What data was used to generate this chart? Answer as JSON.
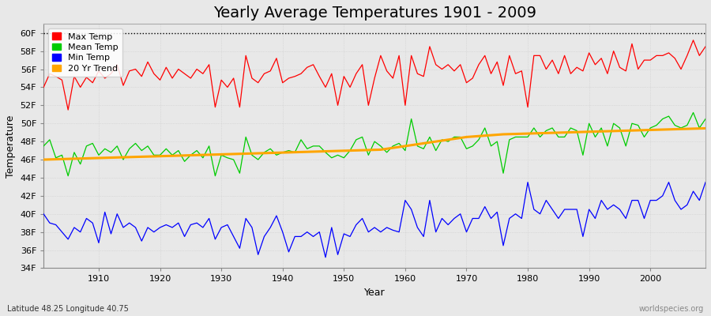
{
  "title": "Yearly Average Temperatures 1901 - 2009",
  "xlabel": "Year",
  "ylabel": "Temperature",
  "bottom_left_label": "Latitude 48.25 Longitude 40.75",
  "bottom_right_label": "worldspecies.org",
  "years": [
    1901,
    1902,
    1903,
    1904,
    1905,
    1906,
    1907,
    1908,
    1909,
    1910,
    1911,
    1912,
    1913,
    1914,
    1915,
    1916,
    1917,
    1918,
    1919,
    1920,
    1921,
    1922,
    1923,
    1924,
    1925,
    1926,
    1927,
    1928,
    1929,
    1930,
    1931,
    1932,
    1933,
    1934,
    1935,
    1936,
    1937,
    1938,
    1939,
    1940,
    1941,
    1942,
    1943,
    1944,
    1945,
    1946,
    1947,
    1948,
    1949,
    1950,
    1951,
    1952,
    1953,
    1954,
    1955,
    1956,
    1957,
    1958,
    1959,
    1960,
    1961,
    1962,
    1963,
    1964,
    1965,
    1966,
    1967,
    1968,
    1969,
    1970,
    1971,
    1972,
    1973,
    1974,
    1975,
    1976,
    1977,
    1978,
    1979,
    1980,
    1981,
    1982,
    1983,
    1984,
    1985,
    1986,
    1987,
    1988,
    1989,
    1990,
    1991,
    1992,
    1993,
    1994,
    1995,
    1996,
    1997,
    1998,
    1999,
    2000,
    2001,
    2002,
    2003,
    2004,
    2005,
    2006,
    2007,
    2008,
    2009
  ],
  "max_temp": [
    54.0,
    55.5,
    55.2,
    54.8,
    51.5,
    55.2,
    54.0,
    55.1,
    54.5,
    55.8,
    55.0,
    55.5,
    56.5,
    54.2,
    55.8,
    56.0,
    55.2,
    56.8,
    55.5,
    54.8,
    56.2,
    55.0,
    56.0,
    55.5,
    55.0,
    56.0,
    55.5,
    56.5,
    51.8,
    54.8,
    54.0,
    55.0,
    51.8,
    57.5,
    55.0,
    54.5,
    55.5,
    55.8,
    57.2,
    54.5,
    55.0,
    55.2,
    55.5,
    56.2,
    56.5,
    55.2,
    54.0,
    55.5,
    52.0,
    55.2,
    54.0,
    55.5,
    56.5,
    52.0,
    55.0,
    57.5,
    55.8,
    55.0,
    57.5,
    52.0,
    57.5,
    55.5,
    55.2,
    58.5,
    56.5,
    56.0,
    56.5,
    55.8,
    56.5,
    54.5,
    55.0,
    56.5,
    57.5,
    55.5,
    56.8,
    54.2,
    57.5,
    55.5,
    55.8,
    51.8,
    57.5,
    57.5,
    56.0,
    57.0,
    55.5,
    57.5,
    55.5,
    56.2,
    55.8,
    57.8,
    56.5,
    57.2,
    55.5,
    58.0,
    56.2,
    55.8,
    58.8,
    56.0,
    57.0,
    57.0,
    57.5,
    57.5,
    57.8,
    57.2,
    56.0,
    57.5,
    59.2,
    57.5,
    58.5
  ],
  "mean_temp": [
    47.5,
    48.2,
    46.2,
    46.5,
    44.2,
    46.8,
    45.5,
    47.5,
    47.8,
    46.5,
    47.2,
    46.8,
    47.5,
    46.0,
    47.2,
    47.8,
    47.0,
    47.5,
    46.5,
    46.5,
    47.2,
    46.5,
    47.0,
    45.8,
    46.5,
    47.0,
    46.2,
    47.5,
    44.2,
    46.5,
    46.2,
    46.0,
    44.5,
    48.5,
    46.5,
    46.0,
    46.8,
    47.2,
    46.5,
    46.8,
    47.0,
    46.8,
    48.2,
    47.2,
    47.5,
    47.5,
    46.8,
    46.2,
    46.5,
    46.2,
    47.0,
    48.2,
    48.5,
    46.5,
    48.0,
    47.5,
    46.8,
    47.5,
    47.8,
    47.0,
    50.5,
    47.5,
    47.2,
    48.5,
    47.0,
    48.2,
    48.0,
    48.5,
    48.5,
    47.2,
    47.5,
    48.2,
    49.5,
    47.5,
    48.0,
    44.5,
    48.2,
    48.5,
    48.5,
    48.5,
    49.5,
    48.5,
    49.2,
    49.5,
    48.5,
    48.5,
    49.5,
    49.2,
    46.5,
    50.0,
    48.5,
    49.5,
    47.5,
    50.0,
    49.5,
    47.5,
    50.0,
    49.8,
    48.5,
    49.5,
    49.8,
    50.5,
    50.8,
    49.8,
    49.5,
    49.8,
    51.2,
    49.5,
    50.5
  ],
  "min_temp": [
    40.0,
    39.0,
    38.8,
    38.0,
    37.2,
    38.5,
    38.0,
    39.5,
    39.0,
    36.8,
    40.2,
    37.8,
    40.0,
    38.5,
    39.0,
    38.5,
    37.0,
    38.5,
    38.0,
    38.5,
    38.8,
    38.5,
    39.0,
    37.5,
    38.8,
    39.0,
    38.5,
    39.5,
    37.2,
    38.5,
    38.8,
    37.5,
    36.2,
    39.5,
    38.5,
    35.5,
    37.5,
    38.5,
    39.8,
    38.0,
    35.8,
    37.5,
    37.5,
    38.0,
    37.5,
    38.0,
    35.2,
    38.5,
    35.5,
    37.8,
    37.5,
    38.8,
    39.5,
    38.0,
    38.5,
    38.0,
    38.5,
    38.2,
    38.0,
    41.5,
    40.5,
    38.5,
    37.5,
    41.5,
    38.0,
    39.5,
    38.8,
    39.5,
    40.0,
    38.0,
    39.5,
    39.5,
    40.8,
    39.5,
    40.2,
    36.5,
    39.5,
    40.0,
    39.5,
    43.5,
    40.5,
    40.0,
    41.5,
    40.5,
    39.5,
    40.5,
    40.5,
    40.5,
    37.5,
    40.5,
    39.5,
    41.5,
    40.5,
    41.0,
    40.5,
    39.5,
    41.5,
    41.5,
    39.5,
    41.5,
    41.5,
    42.0,
    43.5,
    41.5,
    40.5,
    41.0,
    42.5,
    41.5,
    43.5
  ],
  "trend_values": [
    46.0,
    46.02,
    46.04,
    46.06,
    46.08,
    46.1,
    46.12,
    46.14,
    46.16,
    46.18,
    46.2,
    46.22,
    46.24,
    46.26,
    46.28,
    46.3,
    46.32,
    46.34,
    46.36,
    46.38,
    46.4,
    46.42,
    46.44,
    46.46,
    46.48,
    46.5,
    46.52,
    46.54,
    46.56,
    46.58,
    46.6,
    46.62,
    46.64,
    46.66,
    46.68,
    46.7,
    46.72,
    46.74,
    46.76,
    46.78,
    46.8,
    46.82,
    46.84,
    46.86,
    46.88,
    46.9,
    46.92,
    46.94,
    46.96,
    46.98,
    47.0,
    47.02,
    47.04,
    47.06,
    47.08,
    47.1,
    47.2,
    47.3,
    47.4,
    47.5,
    47.6,
    47.7,
    47.8,
    47.9,
    48.0,
    48.1,
    48.2,
    48.3,
    48.4,
    48.5,
    48.55,
    48.6,
    48.65,
    48.7,
    48.75,
    48.8,
    48.82,
    48.84,
    48.86,
    48.88,
    48.9,
    48.92,
    48.94,
    48.96,
    48.98,
    49.0,
    49.02,
    49.04,
    49.06,
    49.08,
    49.1,
    49.12,
    49.14,
    49.16,
    49.18,
    49.2,
    49.22,
    49.24,
    49.26,
    49.28,
    49.3,
    49.32,
    49.34,
    49.36,
    49.38,
    49.4,
    49.42,
    49.44,
    49.46
  ],
  "ylim": [
    34,
    61
  ],
  "yticks": [
    34,
    36,
    38,
    40,
    42,
    44,
    46,
    48,
    50,
    52,
    54,
    56,
    58,
    60
  ],
  "ytick_labels": [
    "34F",
    "36F",
    "38F",
    "40F",
    "42F",
    "44F",
    "46F",
    "48F",
    "50F",
    "52F",
    "54F",
    "56F",
    "58F",
    "60F"
  ],
  "xticks": [
    1910,
    1920,
    1930,
    1940,
    1950,
    1960,
    1970,
    1980,
    1990,
    2000
  ],
  "max_color": "#ff0000",
  "mean_color": "#00cc00",
  "min_color": "#0000ff",
  "trend_color": "#ffa500",
  "bg_color": "#e8e8e8",
  "grid_color": "#cccccc",
  "dotted_line_y": 60,
  "title_fontsize": 14,
  "axis_label_fontsize": 9,
  "tick_fontsize": 8,
  "legend_entries": [
    "Max Temp",
    "Mean Temp",
    "Min Temp",
    "20 Yr Trend"
  ],
  "legend_colors": [
    "#ff0000",
    "#00cc00",
    "#0000ff",
    "#ffa500"
  ]
}
